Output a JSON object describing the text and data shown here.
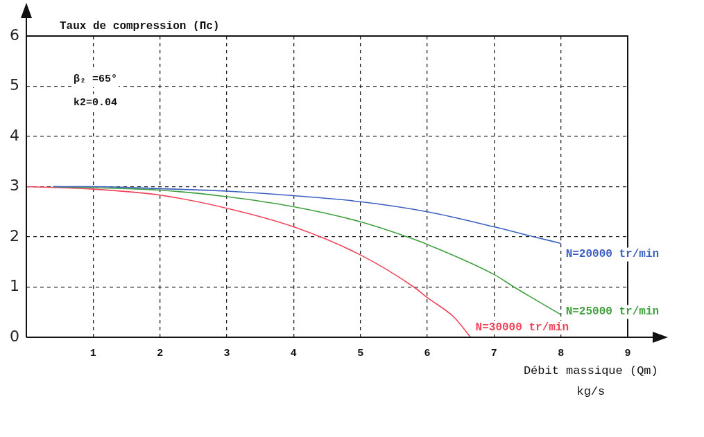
{
  "chart_data": {
    "type": "line",
    "ylabel": "Taux de compression (Πc)",
    "xlabel": "Débit massique (Qm)\nkg/s",
    "xlim": [
      0,
      9
    ],
    "xticks": [
      {
        "value": 0,
        "label": null
      },
      1,
      2,
      3,
      4,
      5,
      6,
      7,
      8,
      9
    ],
    "ylim": [
      0,
      6
    ],
    "yticks": [
      0,
      1,
      2,
      3,
      4,
      5,
      6
    ],
    "grid": true,
    "line_style": "solid",
    "marker": "none",
    "legend": false,
    "annotations": [
      "β₂ =65°",
      "k2=0.04"
    ],
    "series": [
      {
        "name": "N=20000 tr/min",
        "color": "#3a5fc0",
        "x": [
          0.4,
          1,
          2,
          3,
          4,
          5,
          6,
          7,
          7.6,
          8
        ],
        "values": [
          3.0,
          3.0,
          2.96,
          2.91,
          2.82,
          2.7,
          2.5,
          2.2,
          2.0,
          1.87
        ]
      },
      {
        "name": "N=25000 tr/min",
        "color": "#3f9f3f",
        "x": [
          0.4,
          1,
          2,
          3,
          4,
          5,
          5.7,
          6,
          7,
          7.3,
          8
        ],
        "values": [
          3.0,
          2.98,
          2.93,
          2.8,
          2.6,
          2.3,
          2.0,
          1.85,
          1.25,
          1.0,
          0.45
        ]
      },
      {
        "name": "N=30000 tr/min",
        "color": "#f0445a",
        "x": [
          0,
          0.5,
          1,
          2,
          3,
          4,
          5,
          5.8,
          6,
          6.4,
          6.65
        ],
        "values": [
          3.0,
          2.98,
          2.95,
          2.83,
          2.57,
          2.2,
          1.64,
          1.0,
          0.79,
          0.4,
          0
        ]
      }
    ]
  }
}
